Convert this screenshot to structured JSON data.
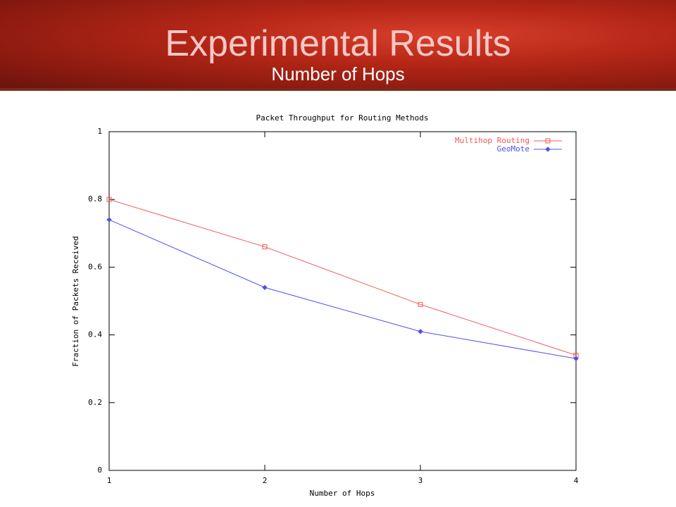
{
  "slide": {
    "title": "Experimental Results",
    "subtitle": "Number of Hops"
  },
  "chart_data": {
    "type": "line",
    "title": "Packet Throughput for Routing Methods",
    "x_label": "Number of Hops",
    "y_label": "Fraction of Packets Received",
    "x": [
      1,
      2,
      3,
      4
    ],
    "series": [
      {
        "name": "Multihop Routing",
        "color": "#f05858",
        "marker": "square",
        "values": [
          0.8,
          0.66,
          0.49,
          0.34
        ]
      },
      {
        "name": "GeoMote",
        "color": "#5050f0",
        "marker": "diamond",
        "values": [
          0.74,
          0.54,
          0.41,
          0.33
        ]
      }
    ],
    "xlim": [
      1,
      4
    ],
    "xticks": [
      1,
      2,
      3,
      4
    ],
    "ylim": [
      0,
      1
    ],
    "yticks": [
      0,
      0.2,
      0.4,
      0.6,
      0.8,
      1
    ],
    "legend": "upper right",
    "grid": false
  }
}
